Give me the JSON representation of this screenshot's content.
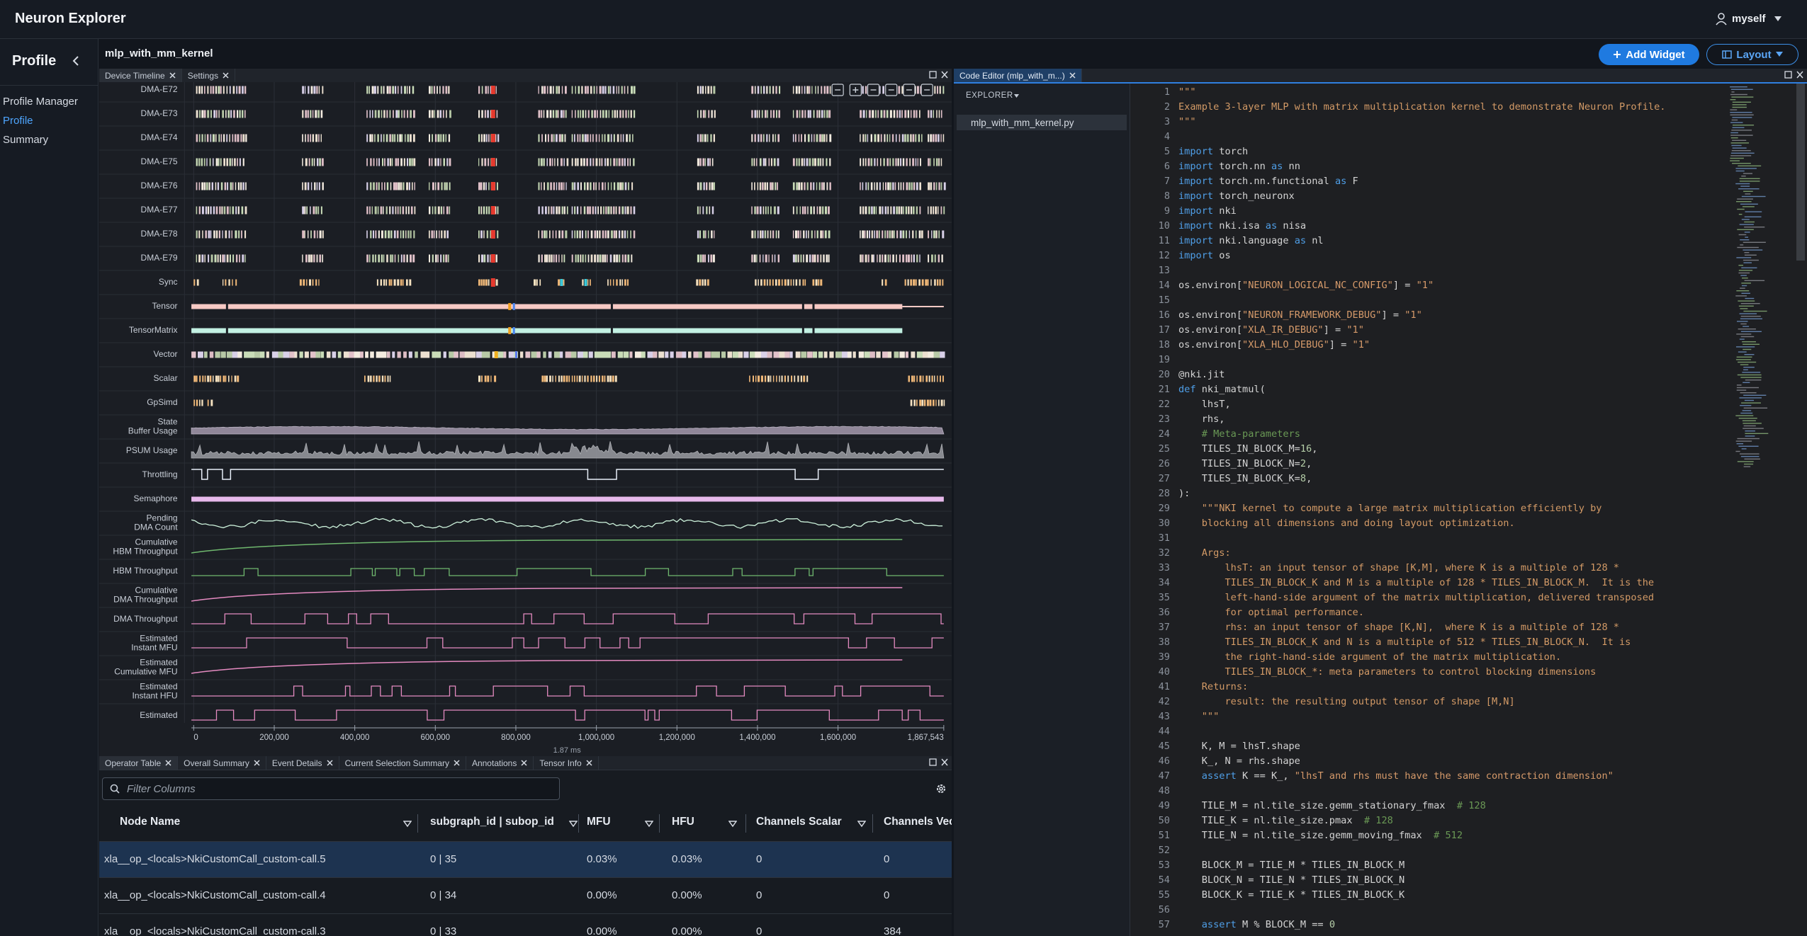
{
  "app": {
    "title": "Neuron Explorer",
    "user": "myself"
  },
  "sidebar": {
    "title": "Profile",
    "items": [
      "Profile Manager",
      "Profile",
      "Summary"
    ]
  },
  "page": {
    "title": "mlp_with_mm_kernel",
    "add_widget": "Add Widget",
    "layout": "Layout"
  },
  "timeline": {
    "tabs": [
      "Device Timeline",
      "Settings"
    ],
    "rows": [
      [
        "DMA-E72"
      ],
      [
        "DMA-E73"
      ],
      [
        "DMA-E74"
      ],
      [
        "DMA-E75"
      ],
      [
        "DMA-E76"
      ],
      [
        "DMA-E77"
      ],
      [
        "DMA-E78"
      ],
      [
        "DMA-E79"
      ],
      [
        "Sync"
      ],
      [
        "Tensor"
      ],
      [
        "TensorMatrix"
      ],
      [
        "Vector"
      ],
      [
        "Scalar"
      ],
      [
        "GpSimd"
      ],
      [
        "State",
        "Buffer Usage"
      ],
      [
        "PSUM Usage"
      ],
      [
        "Throttling"
      ],
      [
        "Semaphore"
      ],
      [
        "Pending",
        "DMA Count"
      ],
      [
        "Cumulative",
        "HBM Throughput"
      ],
      [
        "HBM Throughput"
      ],
      [
        "Cumulative",
        "DMA Throughput"
      ],
      [
        "DMA Throughput"
      ],
      [
        "Estimated",
        "Instant MFU"
      ],
      [
        "Estimated",
        "Cumulative MFU"
      ],
      [
        "Estimated",
        "Instant HFU"
      ],
      [
        "Estimated"
      ]
    ],
    "axis_ticks": [
      "0",
      "200,000",
      "400,000",
      "600,000",
      "800,000",
      "1,000,000",
      "1,200,000",
      "1,400,000",
      "1,600,000",
      "1,867,543"
    ],
    "span": "1.87 ms"
  },
  "bottom": {
    "tabs": [
      "Operator Table",
      "Overall Summary",
      "Event Details",
      "Current Selection Summary",
      "Annotations",
      "Tensor Info"
    ],
    "filter_placeholder": "Filter Columns",
    "columns": [
      "Node Name",
      "subgraph_id | subop_id",
      "MFU",
      "HFU",
      "Channels Scalar",
      "Channels Vect"
    ],
    "rows": [
      [
        "xla__op_<locals>NkiCustomCall_custom-call.5",
        "0 | 35",
        "0.03%",
        "0.03%",
        "0",
        "0"
      ],
      [
        "xla__op_<locals>NkiCustomCall_custom-call.4",
        "0 | 34",
        "0.00%",
        "0.00%",
        "0",
        "0"
      ],
      [
        "xla__op_<locals>NkiCustomCall_custom-call.3",
        "0 | 33",
        "0.00%",
        "0.00%",
        "0",
        "384"
      ]
    ]
  },
  "editor": {
    "tab": "Code Editor (mlp_with_m...)",
    "explorer": "EXPLORER",
    "file": "mlp_with_mm_kernel.py",
    "lines": [
      {
        "n": 1,
        "code": "\"\"\""
      },
      {
        "n": 2,
        "code": "Example 3-layer MLP with matrix multiplication kernel to demonstrate Neuron Profile."
      },
      {
        "n": 3,
        "code": "\"\"\""
      },
      {
        "n": 4
      },
      {
        "n": 5,
        "code": "import torch"
      },
      {
        "n": 6,
        "code": "import torch.nn as nn"
      },
      {
        "n": 7,
        "code": "import torch.nn.functional as F"
      },
      {
        "n": 8,
        "code": "import torch_neuronx"
      },
      {
        "n": 9,
        "code": "import nki"
      },
      {
        "n": 10,
        "code": "import nki.isa as nisa"
      },
      {
        "n": 11,
        "code": "import nki.language as nl"
      },
      {
        "n": 12,
        "code": "import os"
      },
      {
        "n": 13
      },
      {
        "n": 14,
        "code": "os.environ[\"NEURON_LOGICAL_NC_CONFIG\"] = \"1\""
      },
      {
        "n": 15
      },
      {
        "n": 16,
        "code": "os.environ[\"NEURON_FRAMEWORK_DEBUG\"] = \"1\""
      },
      {
        "n": 17,
        "code": "os.environ[\"XLA_IR_DEBUG\"] = \"1\""
      },
      {
        "n": 18,
        "code": "os.environ[\"XLA_HLO_DEBUG\"] = \"1\""
      },
      {
        "n": 19
      },
      {
        "n": 20,
        "code": "@nki.jit"
      },
      {
        "n": 21,
        "code": "def nki_matmul("
      },
      {
        "n": 22,
        "code": "    lhsT,"
      },
      {
        "n": 23,
        "code": "    rhs,"
      },
      {
        "n": 24,
        "code": "    # Meta-parameters"
      },
      {
        "n": 25,
        "code": "    TILES_IN_BLOCK_M=16,"
      },
      {
        "n": 26,
        "code": "    TILES_IN_BLOCK_N=2,"
      },
      {
        "n": 27,
        "code": "    TILES_IN_BLOCK_K=8,"
      },
      {
        "n": 28,
        "code": "):"
      },
      {
        "n": 29,
        "code": "    \"\"\"NKI kernel to compute a large matrix multiplication efficiently by"
      },
      {
        "n": 30,
        "code": "    blocking all dimensions and doing layout optimization."
      },
      {
        "n": 31
      },
      {
        "n": 32,
        "code": "    Args:"
      },
      {
        "n": 33,
        "code": "        lhsT: an input tensor of shape [K,M], where K is a multiple of 128 *"
      },
      {
        "n": 34,
        "code": "        TILES_IN_BLOCK_K and M is a multiple of 128 * TILES_IN_BLOCK_M.  It is the"
      },
      {
        "n": 35,
        "code": "        left-hand-side argument of the matrix multiplication, delivered transposed"
      },
      {
        "n": 36,
        "code": "        for optimal performance."
      },
      {
        "n": 37,
        "code": "        rhs: an input tensor of shape [K,N],  where K is a multiple of 128 *"
      },
      {
        "n": 38,
        "code": "        TILES_IN_BLOCK_K and N is a multiple of 512 * TILES_IN_BLOCK_N.  It is"
      },
      {
        "n": 39,
        "code": "        the right-hand-side argument of the matrix multiplication."
      },
      {
        "n": 40,
        "code": "        TILES_IN_BLOCK_*: meta parameters to control blocking dimensions"
      },
      {
        "n": 41,
        "code": "    Returns:"
      },
      {
        "n": 42,
        "code": "        result: the resulting output tensor of shape [M,N]"
      },
      {
        "n": 43,
        "code": "    \"\"\""
      },
      {
        "n": 44
      },
      {
        "n": 45,
        "code": "    K, M = lhsT.shape"
      },
      {
        "n": 46,
        "code": "    K_, N = rhs.shape"
      },
      {
        "n": 47,
        "code": "    assert K == K_, \"lhsT and rhs must have the same contraction dimension\""
      },
      {
        "n": 48
      },
      {
        "n": 49,
        "code": "    TILE_M = nl.tile_size.gemm_stationary_fmax  # 128"
      },
      {
        "n": 50,
        "code": "    TILE_K = nl.tile_size.pmax  # 128"
      },
      {
        "n": 51,
        "code": "    TILE_N = nl.tile_size.gemm_moving_fmax  # 512"
      },
      {
        "n": 52
      },
      {
        "n": 53,
        "code": "    BLOCK_M = TILE_M * TILES_IN_BLOCK_M"
      },
      {
        "n": 54,
        "code": "    BLOCK_N = TILE_N * TILES_IN_BLOCK_N"
      },
      {
        "n": 55,
        "code": "    BLOCK_K = TILE_K * TILES_IN_BLOCK_K"
      },
      {
        "n": 56
      },
      {
        "n": 57,
        "code": "    assert M % BLOCK_M == 0"
      }
    ]
  }
}
